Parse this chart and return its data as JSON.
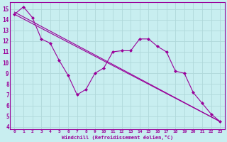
{
  "xlabel": "Windchill (Refroidissement éolien,°C)",
  "background_color": "#c8eef0",
  "grid_color": "#b0d8da",
  "line_color": "#990099",
  "xlim": [
    -0.5,
    23.5
  ],
  "ylim": [
    3.8,
    15.6
  ],
  "yticks": [
    4,
    5,
    6,
    7,
    8,
    9,
    10,
    11,
    12,
    13,
    14,
    15
  ],
  "xticks": [
    0,
    1,
    2,
    3,
    4,
    5,
    6,
    7,
    8,
    9,
    10,
    11,
    12,
    13,
    14,
    15,
    16,
    17,
    18,
    19,
    20,
    21,
    22,
    23
  ],
  "line_zigzag": {
    "x": [
      0,
      1,
      2,
      3,
      4,
      5,
      6,
      7,
      8,
      9,
      10,
      11,
      12,
      13,
      14,
      15,
      16,
      17,
      18,
      19,
      20,
      21,
      22,
      23
    ],
    "y": [
      14.5,
      15.2,
      14.2,
      12.2,
      11.8,
      10.2,
      8.8,
      7.0,
      7.5,
      9.0,
      9.5,
      11.0,
      11.1,
      11.1,
      12.2,
      12.2,
      11.5,
      11.0,
      9.2,
      9.0,
      7.2,
      6.2,
      5.2,
      4.5
    ]
  },
  "line_straight1": {
    "x": [
      0,
      23
    ],
    "y": [
      14.7,
      4.5
    ]
  },
  "line_straight2": {
    "x": [
      0,
      23
    ],
    "y": [
      14.5,
      4.5
    ]
  }
}
